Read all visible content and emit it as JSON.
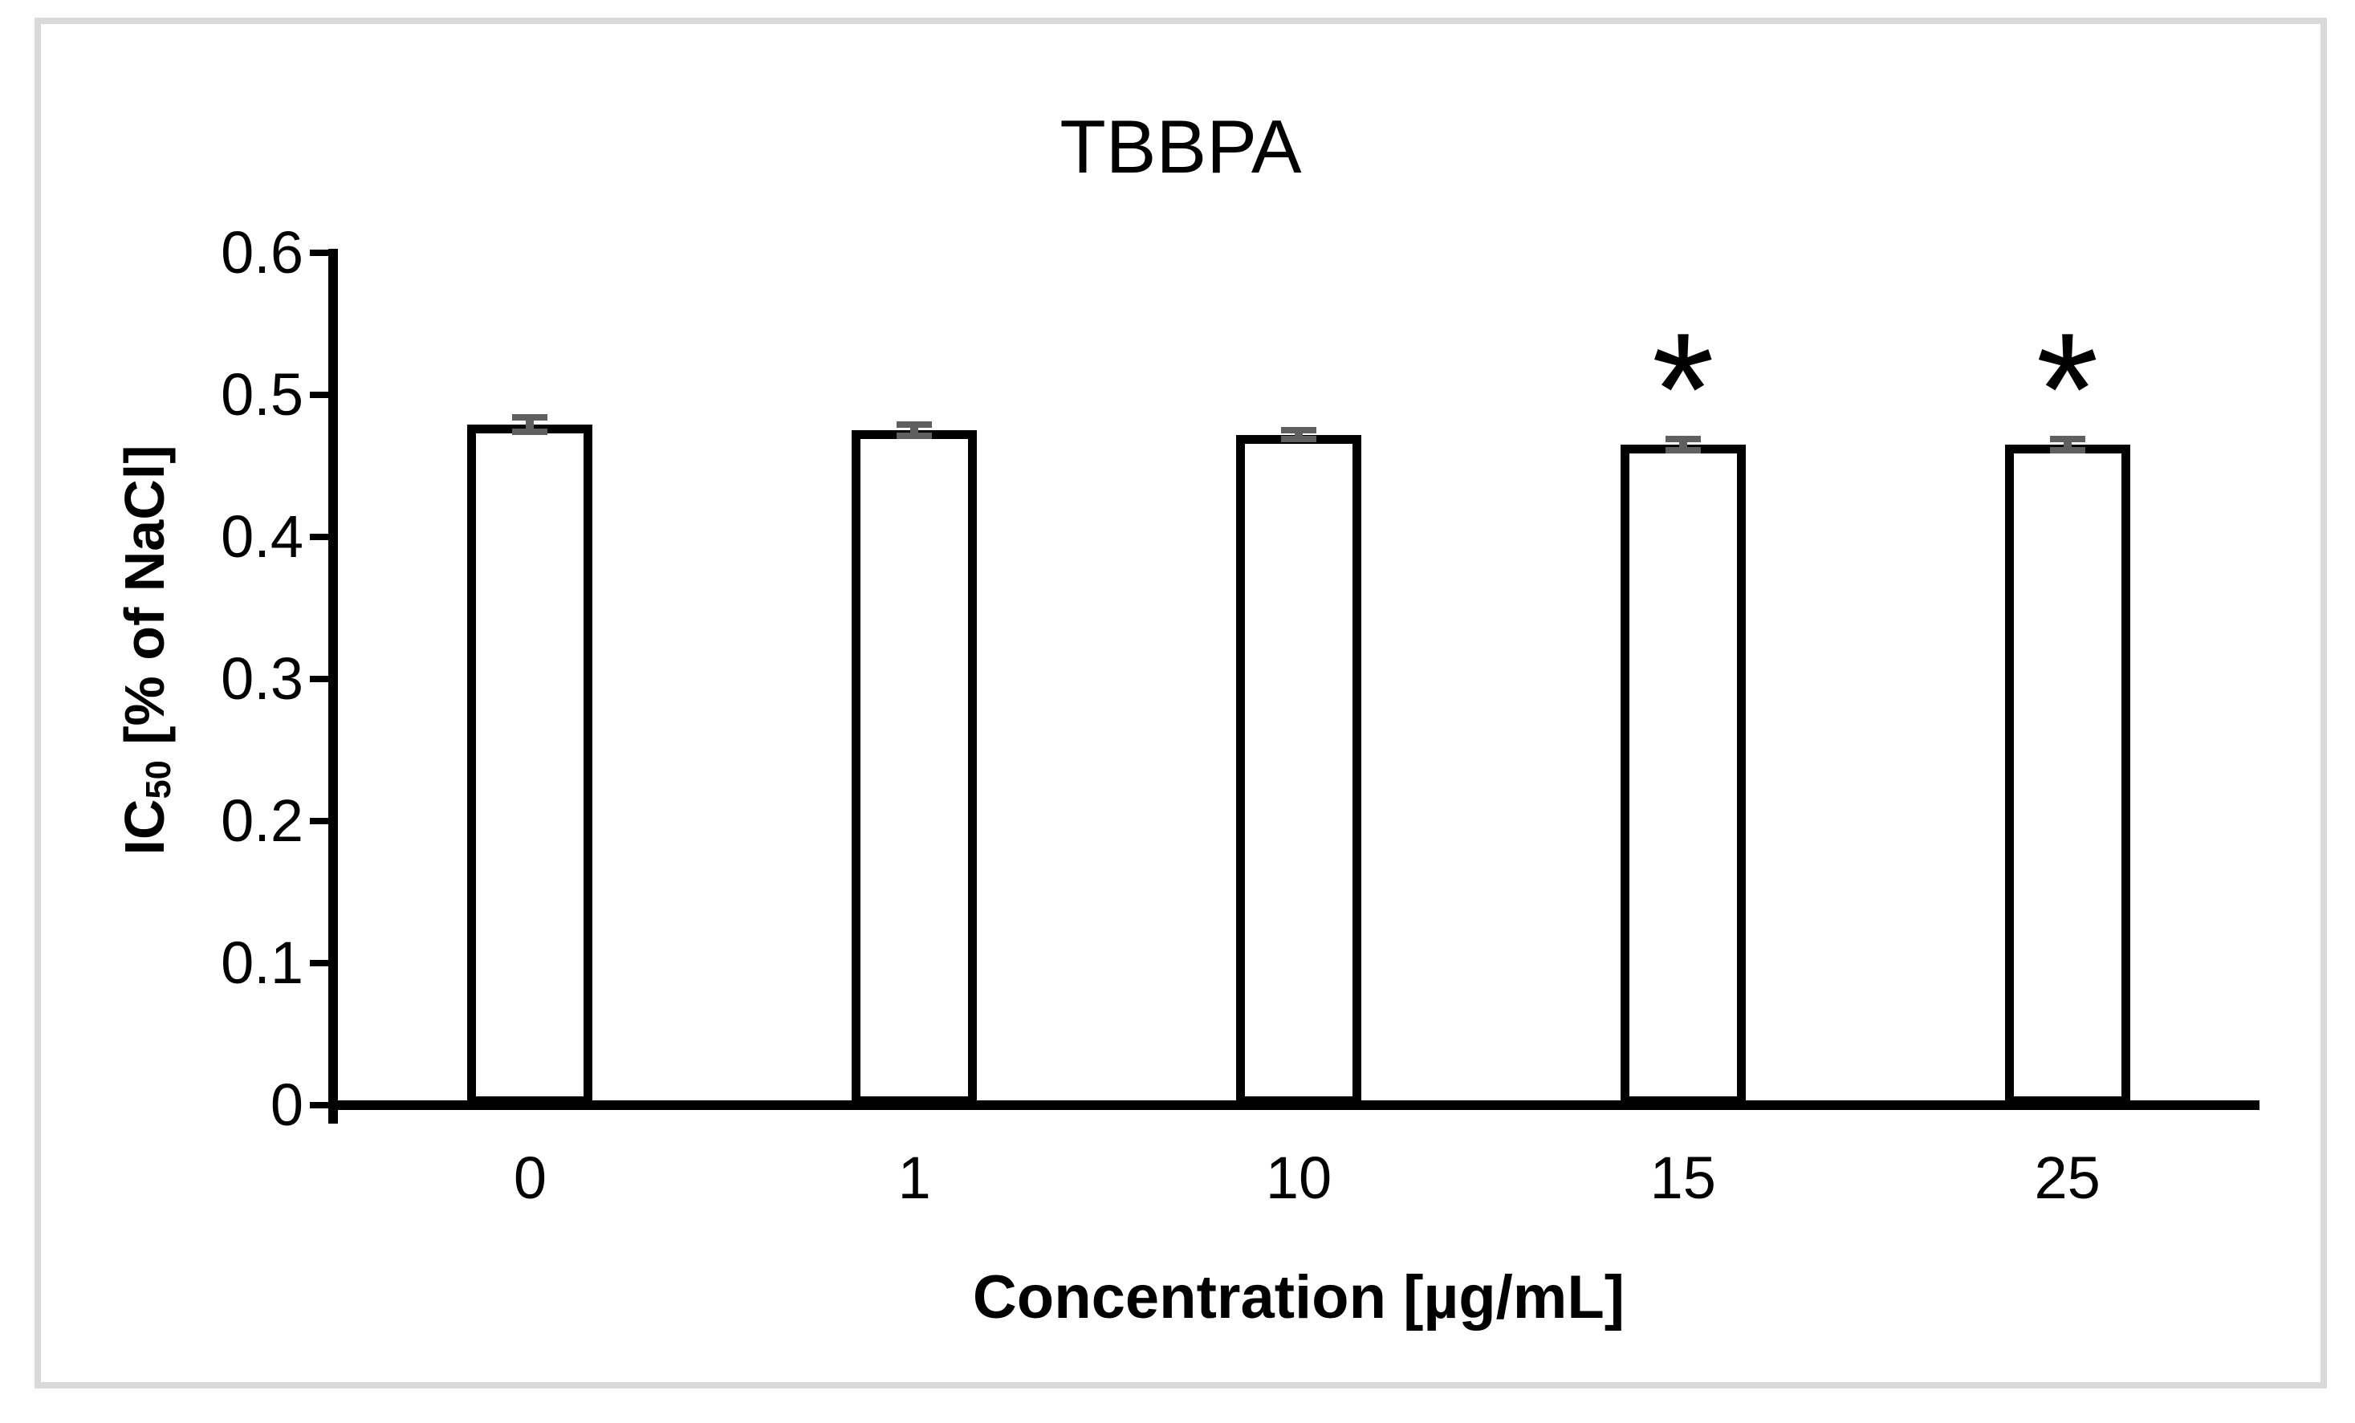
{
  "chart": {
    "title": "TBBPA",
    "x_axis_title": "Concentration [µg/mL]",
    "y_axis_title_prefix": "IC",
    "y_axis_title_subscript": "50",
    "y_axis_title_suffix": " [% of NaCl]"
  },
  "chart_data": {
    "type": "bar",
    "title": "TBBPA",
    "xlabel": "Concentration [µg/mL]",
    "ylabel": "IC50 [% of NaCl]",
    "categories": [
      "0",
      "1",
      "10",
      "15",
      "25"
    ],
    "values": [
      0.479,
      0.475,
      0.472,
      0.465,
      0.465
    ],
    "error_bars": [
      0.005,
      0.004,
      0.003,
      0.004,
      0.004
    ],
    "significance": [
      false,
      false,
      false,
      true,
      true
    ],
    "significance_marker": "*",
    "ylim": [
      0,
      0.6
    ],
    "ytick_labels": [
      "0",
      "0.1",
      "0.2",
      "0.3",
      "0.4",
      "0.5",
      "0.6"
    ],
    "grid": false,
    "legend": false,
    "bar_fill_color": "#ffffff",
    "bar_border_color": "#000000",
    "error_bar_color": "#5f5f5f",
    "frame_border_color": "#d9d9d9"
  }
}
